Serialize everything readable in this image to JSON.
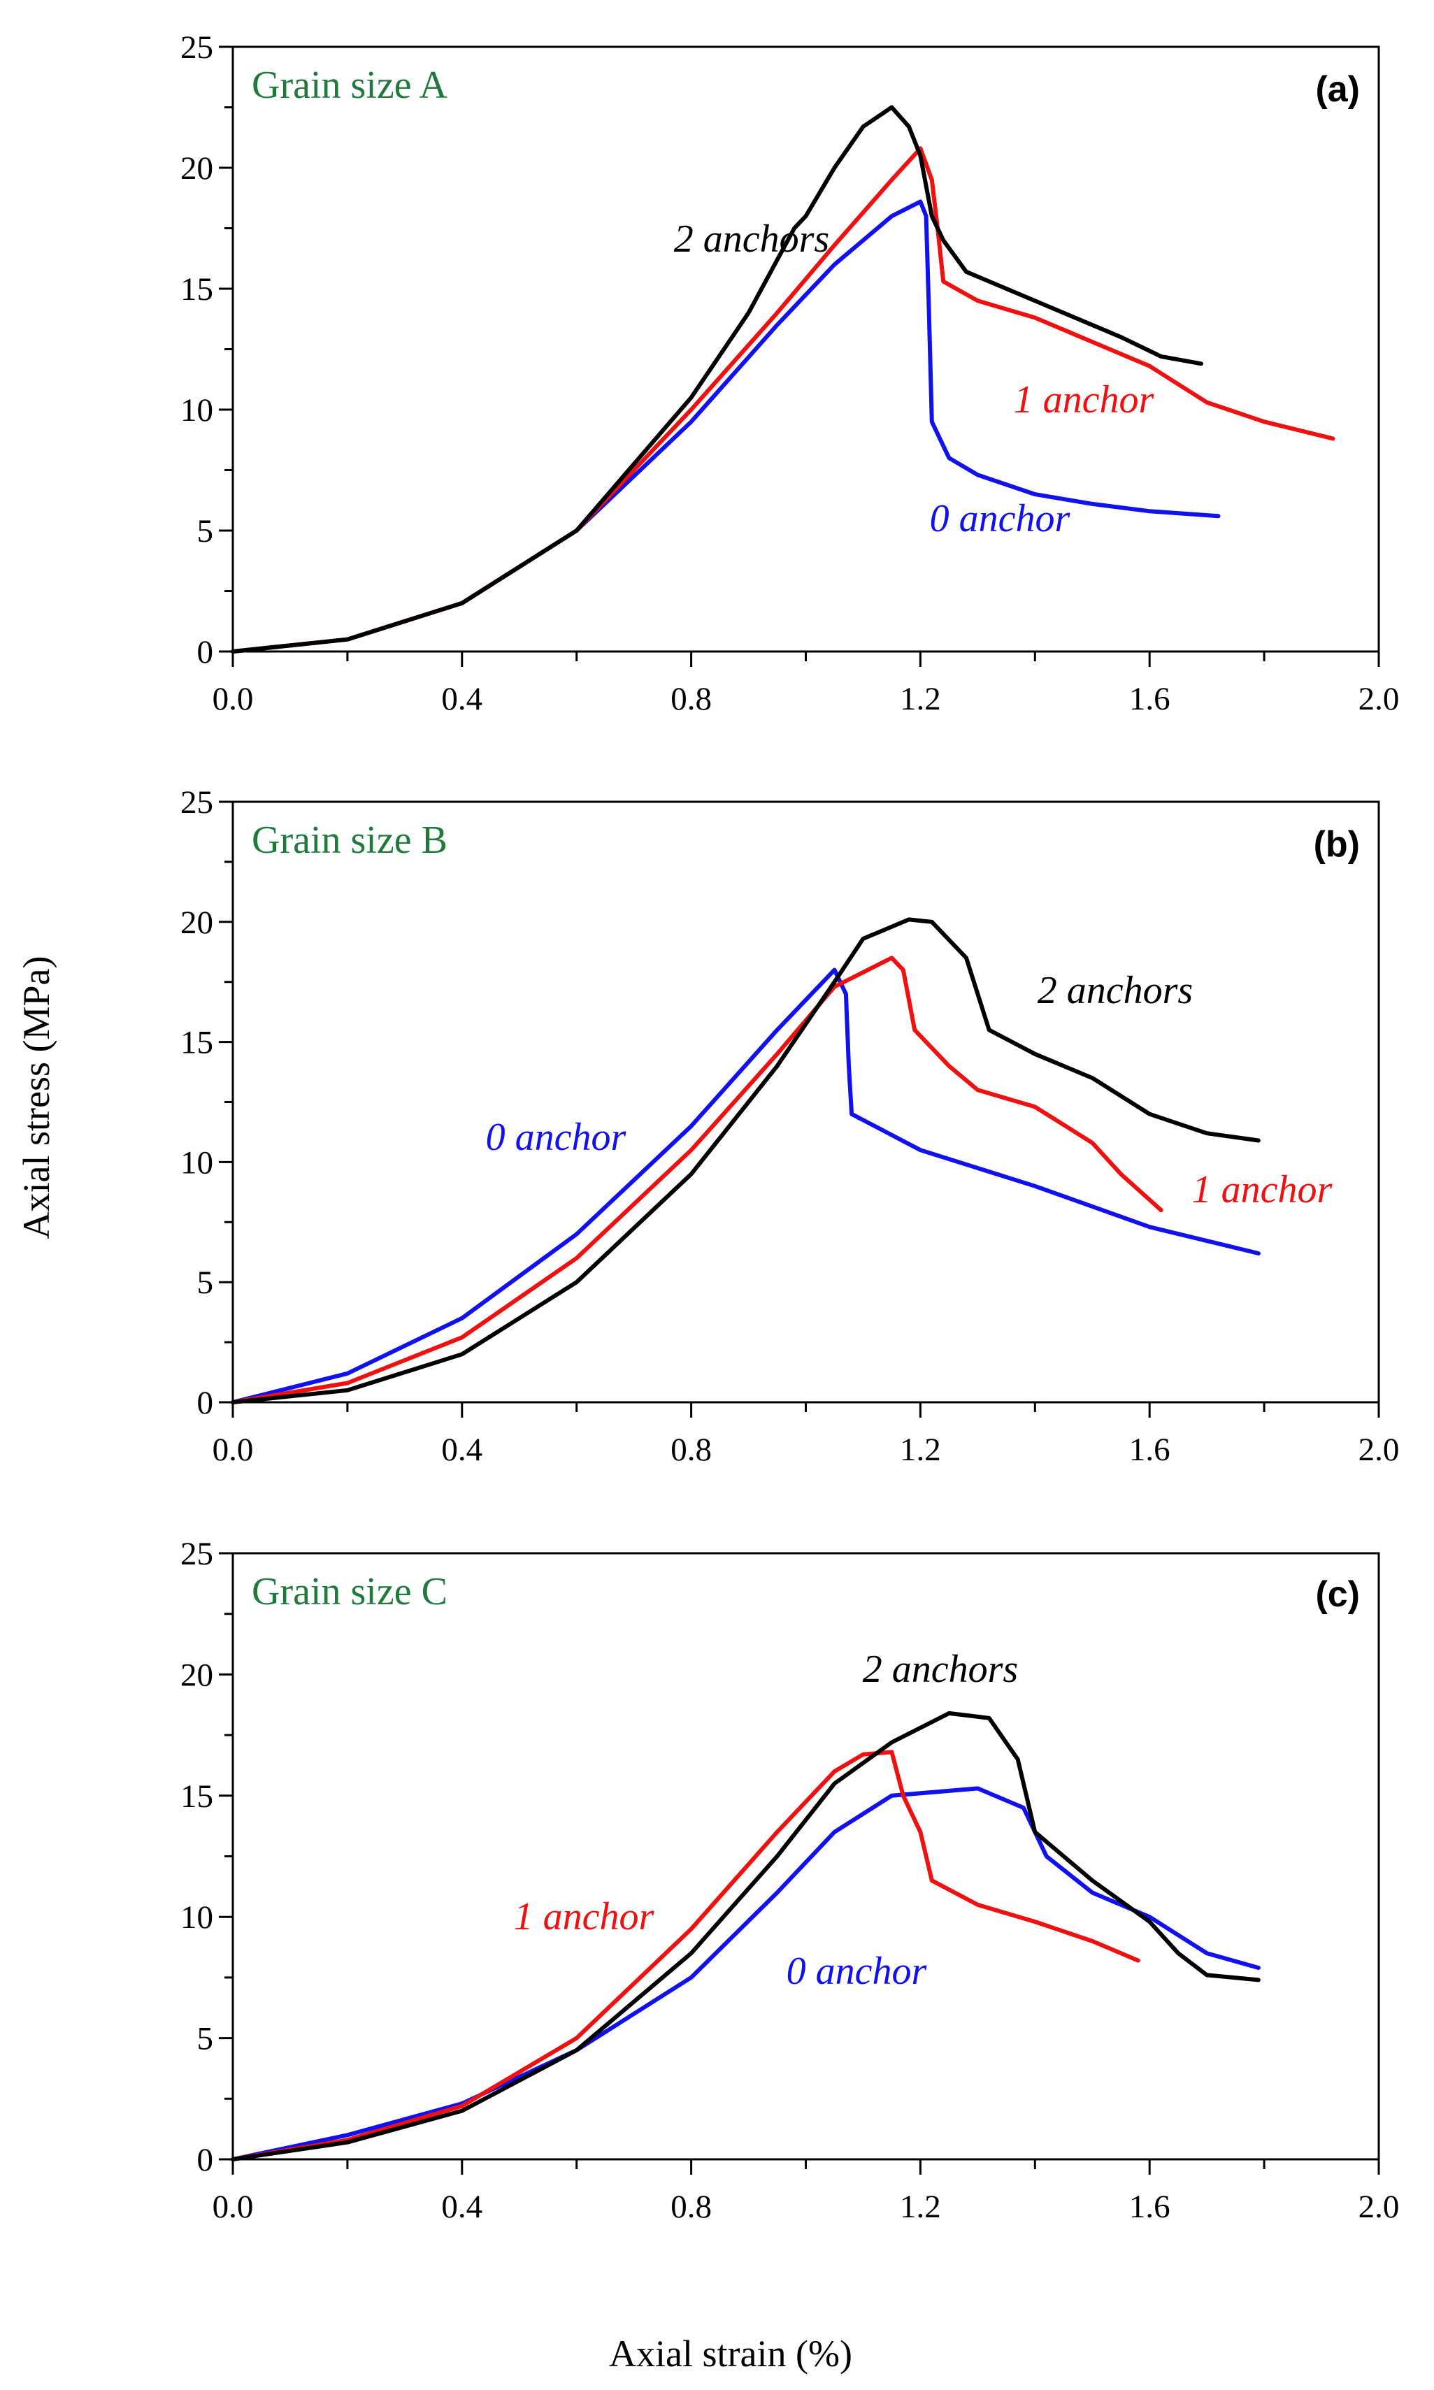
{
  "figure": {
    "ylabel": "Axial stress  (MPa)",
    "xlabel": "Axial strain (%)"
  },
  "colors": {
    "0 anchor": "#1010f0",
    "1 anchor": "#f01010",
    "2 anchors": "#000000",
    "panel_title": "#1f7a3c"
  },
  "chart_data": [
    {
      "type": "line",
      "panel": "(a)",
      "title": "Grain size A",
      "x_ticks": [
        "0.0",
        "0.4",
        "0.8",
        "1.2",
        "1.6",
        "2.0"
      ],
      "y_ticks": [
        "0",
        "5",
        "10",
        "15",
        "20",
        "25"
      ],
      "xlim": [
        0,
        2.0
      ],
      "ylim": [
        0,
        25
      ],
      "series": [
        {
          "name": "0 anchor",
          "color": "#1010f0",
          "points": [
            [
              0,
              0
            ],
            [
              0.2,
              0.5
            ],
            [
              0.4,
              2
            ],
            [
              0.6,
              5
            ],
            [
              0.8,
              9.5
            ],
            [
              0.95,
              13.5
            ],
            [
              1.05,
              16
            ],
            [
              1.15,
              18
            ],
            [
              1.2,
              18.6
            ],
            [
              1.21,
              18
            ],
            [
              1.215,
              14
            ],
            [
              1.22,
              9.5
            ],
            [
              1.25,
              8
            ],
            [
              1.3,
              7.3
            ],
            [
              1.4,
              6.5
            ],
            [
              1.5,
              6.1
            ],
            [
              1.6,
              5.8
            ],
            [
              1.72,
              5.6
            ]
          ]
        },
        {
          "name": "1 anchor",
          "color": "#f01010",
          "points": [
            [
              0,
              0
            ],
            [
              0.2,
              0.5
            ],
            [
              0.4,
              2
            ],
            [
              0.6,
              5
            ],
            [
              0.8,
              10
            ],
            [
              0.95,
              14
            ],
            [
              1.05,
              16.8
            ],
            [
              1.15,
              19.5
            ],
            [
              1.2,
              20.8
            ],
            [
              1.22,
              19.5
            ],
            [
              1.23,
              17.5
            ],
            [
              1.24,
              15.3
            ],
            [
              1.3,
              14.5
            ],
            [
              1.4,
              13.8
            ],
            [
              1.5,
              12.8
            ],
            [
              1.6,
              11.8
            ],
            [
              1.7,
              10.3
            ],
            [
              1.8,
              9.5
            ],
            [
              1.92,
              8.8
            ]
          ]
        },
        {
          "name": "2 anchors",
          "color": "#000000",
          "points": [
            [
              0,
              0
            ],
            [
              0.2,
              0.5
            ],
            [
              0.4,
              2
            ],
            [
              0.6,
              5
            ],
            [
              0.8,
              10.5
            ],
            [
              0.9,
              14
            ],
            [
              0.98,
              17.5
            ],
            [
              1.0,
              18
            ],
            [
              1.05,
              20
            ],
            [
              1.1,
              21.7
            ],
            [
              1.15,
              22.5
            ],
            [
              1.18,
              21.7
            ],
            [
              1.2,
              20.5
            ],
            [
              1.22,
              18
            ],
            [
              1.24,
              17
            ],
            [
              1.28,
              15.7
            ],
            [
              1.35,
              15
            ],
            [
              1.45,
              14
            ],
            [
              1.55,
              13
            ],
            [
              1.62,
              12.2
            ],
            [
              1.69,
              11.9
            ]
          ]
        }
      ],
      "annotations": [
        "2 anchors",
        "1 anchor",
        "0 anchor",
        "(a)"
      ]
    },
    {
      "type": "line",
      "panel": "(b)",
      "title": "Grain size B",
      "x_ticks": [
        "0.0",
        "0.4",
        "0.8",
        "1.2",
        "1.6",
        "2.0"
      ],
      "y_ticks": [
        "0",
        "5",
        "10",
        "15",
        "20",
        "25"
      ],
      "xlim": [
        0,
        2.0
      ],
      "ylim": [
        0,
        25
      ],
      "series": [
        {
          "name": "0 anchor",
          "color": "#1010f0",
          "points": [
            [
              0,
              0
            ],
            [
              0.2,
              1.2
            ],
            [
              0.4,
              3.5
            ],
            [
              0.6,
              7
            ],
            [
              0.8,
              11.5
            ],
            [
              0.95,
              15.5
            ],
            [
              1.05,
              18
            ],
            [
              1.07,
              17
            ],
            [
              1.075,
              14
            ],
            [
              1.08,
              12
            ],
            [
              1.2,
              10.5
            ],
            [
              1.4,
              9
            ],
            [
              1.6,
              7.3
            ],
            [
              1.79,
              6.2
            ]
          ]
        },
        {
          "name": "1 anchor",
          "color": "#f01010",
          "points": [
            [
              0,
              0
            ],
            [
              0.2,
              0.8
            ],
            [
              0.4,
              2.7
            ],
            [
              0.6,
              6
            ],
            [
              0.8,
              10.5
            ],
            [
              0.95,
              14.5
            ],
            [
              1.05,
              17.3
            ],
            [
              1.15,
              18.5
            ],
            [
              1.17,
              18
            ],
            [
              1.19,
              15.5
            ],
            [
              1.25,
              14
            ],
            [
              1.3,
              13
            ],
            [
              1.4,
              12.3
            ],
            [
              1.5,
              10.8
            ],
            [
              1.55,
              9.5
            ],
            [
              1.62,
              8
            ]
          ]
        },
        {
          "name": "2 anchors",
          "color": "#000000",
          "points": [
            [
              0,
              0
            ],
            [
              0.2,
              0.5
            ],
            [
              0.4,
              2
            ],
            [
              0.6,
              5
            ],
            [
              0.8,
              9.5
            ],
            [
              0.95,
              14
            ],
            [
              1.05,
              17.5
            ],
            [
              1.1,
              19.3
            ],
            [
              1.18,
              20.1
            ],
            [
              1.22,
              20
            ],
            [
              1.28,
              18.5
            ],
            [
              1.32,
              15.5
            ],
            [
              1.4,
              14.5
            ],
            [
              1.5,
              13.5
            ],
            [
              1.6,
              12
            ],
            [
              1.7,
              11.2
            ],
            [
              1.79,
              10.9
            ]
          ]
        }
      ],
      "annotations": [
        "2 anchors",
        "1 anchor",
        "0 anchor",
        "(b)"
      ]
    },
    {
      "type": "line",
      "panel": "(c)",
      "title": "Grain size C",
      "x_ticks": [
        "0.0",
        "0.4",
        "0.8",
        "1.2",
        "1.6",
        "2.0"
      ],
      "y_ticks": [
        "0",
        "5",
        "10",
        "15",
        "20",
        "25"
      ],
      "xlim": [
        0,
        2.0
      ],
      "ylim": [
        0,
        25
      ],
      "series": [
        {
          "name": "0 anchor",
          "color": "#1010f0",
          "points": [
            [
              0,
              0
            ],
            [
              0.2,
              1
            ],
            [
              0.4,
              2.3
            ],
            [
              0.6,
              4.5
            ],
            [
              0.8,
              7.5
            ],
            [
              0.95,
              11
            ],
            [
              1.05,
              13.5
            ],
            [
              1.15,
              15
            ],
            [
              1.3,
              15.3
            ],
            [
              1.38,
              14.5
            ],
            [
              1.42,
              12.5
            ],
            [
              1.5,
              11
            ],
            [
              1.6,
              10
            ],
            [
              1.7,
              8.5
            ],
            [
              1.79,
              7.9
            ]
          ]
        },
        {
          "name": "1 anchor",
          "color": "#f01010",
          "points": [
            [
              0,
              0
            ],
            [
              0.2,
              0.8
            ],
            [
              0.4,
              2.2
            ],
            [
              0.6,
              5
            ],
            [
              0.8,
              9.5
            ],
            [
              0.95,
              13.5
            ],
            [
              1.05,
              16
            ],
            [
              1.1,
              16.7
            ],
            [
              1.15,
              16.8
            ],
            [
              1.17,
              15
            ],
            [
              1.2,
              13.5
            ],
            [
              1.22,
              11.5
            ],
            [
              1.3,
              10.5
            ],
            [
              1.4,
              9.8
            ],
            [
              1.5,
              9
            ],
            [
              1.58,
              8.2
            ]
          ]
        },
        {
          "name": "2 anchors",
          "color": "#000000",
          "points": [
            [
              0,
              0
            ],
            [
              0.2,
              0.7
            ],
            [
              0.4,
              2
            ],
            [
              0.6,
              4.5
            ],
            [
              0.8,
              8.5
            ],
            [
              0.95,
              12.5
            ],
            [
              1.05,
              15.5
            ],
            [
              1.15,
              17.2
            ],
            [
              1.25,
              18.4
            ],
            [
              1.32,
              18.2
            ],
            [
              1.37,
              16.5
            ],
            [
              1.4,
              13.5
            ],
            [
              1.5,
              11.5
            ],
            [
              1.6,
              9.8
            ],
            [
              1.65,
              8.5
            ],
            [
              1.7,
              7.6
            ],
            [
              1.79,
              7.4
            ]
          ]
        }
      ],
      "annotations": [
        "2 anchors",
        "1 anchor",
        "0 anchor",
        "(c)"
      ]
    }
  ]
}
